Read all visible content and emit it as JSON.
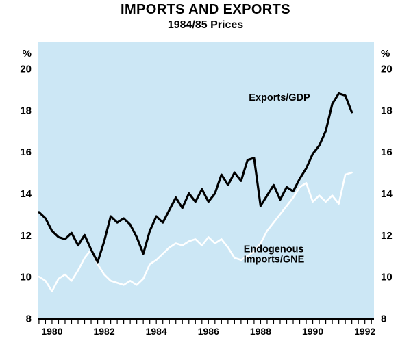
{
  "title": "IMPORTS AND EXPORTS",
  "subtitle": "1984/85 Prices",
  "chart_data": {
    "type": "line",
    "title": "IMPORTS AND EXPORTS",
    "subtitle": "1984/85 Prices",
    "x_start": 1979.5,
    "x_step": 0.25,
    "x_axis_range": [
      1979.45,
      1992.35
    ],
    "ylim": [
      8,
      21.25
    ],
    "y_ticks": [
      8,
      10,
      12,
      14,
      16,
      18,
      20
    ],
    "y_unit": "%",
    "x_year_labels": [
      1980,
      1982,
      1984,
      1986,
      1988,
      1990,
      1992
    ],
    "grid": false,
    "legend": "none",
    "plot_background": "#cce7f5",
    "axis_color": "#000000",
    "series": [
      {
        "name": "Exports/GDP",
        "color": "#000000",
        "stroke_width": 3.2,
        "values": [
          13.1,
          12.8,
          12.2,
          11.9,
          11.8,
          12.1,
          11.5,
          12.0,
          11.3,
          10.7,
          11.7,
          12.9,
          12.6,
          12.8,
          12.5,
          11.9,
          11.1,
          12.2,
          12.9,
          12.6,
          13.2,
          13.8,
          13.3,
          14.0,
          13.6,
          14.2,
          13.6,
          14.0,
          14.9,
          14.4,
          15.0,
          14.6,
          15.6,
          15.7,
          13.4,
          13.9,
          14.4,
          13.7,
          14.3,
          14.1,
          14.7,
          15.2,
          15.9,
          16.3,
          17.0,
          18.3,
          18.8,
          18.7,
          17.9
        ]
      },
      {
        "name": "Endogenous Imports/GNE",
        "color": "#ffffff",
        "stroke_width": 2.6,
        "values": [
          10.0,
          9.8,
          9.3,
          9.9,
          10.1,
          9.8,
          10.3,
          10.9,
          11.3,
          10.6,
          10.1,
          9.8,
          9.7,
          9.6,
          9.8,
          9.6,
          9.9,
          10.6,
          10.8,
          11.1,
          11.4,
          11.6,
          11.5,
          11.7,
          11.8,
          11.5,
          11.9,
          11.6,
          11.8,
          11.4,
          10.9,
          10.8,
          11.0,
          11.2,
          11.6,
          12.2,
          12.6,
          13.0,
          13.4,
          13.8,
          14.3,
          14.5,
          13.6,
          13.9,
          13.6,
          13.9,
          13.5,
          14.9,
          15.0
        ]
      }
    ],
    "annotations": [
      {
        "text": "Exports/GDP",
        "x": 1987.55,
        "y": 18.45
      },
      {
        "text": "Endogenous",
        "x": 1987.35,
        "y": 11.18
      },
      {
        "text": "Imports/GNE",
        "x": 1987.35,
        "y": 10.68
      }
    ]
  }
}
